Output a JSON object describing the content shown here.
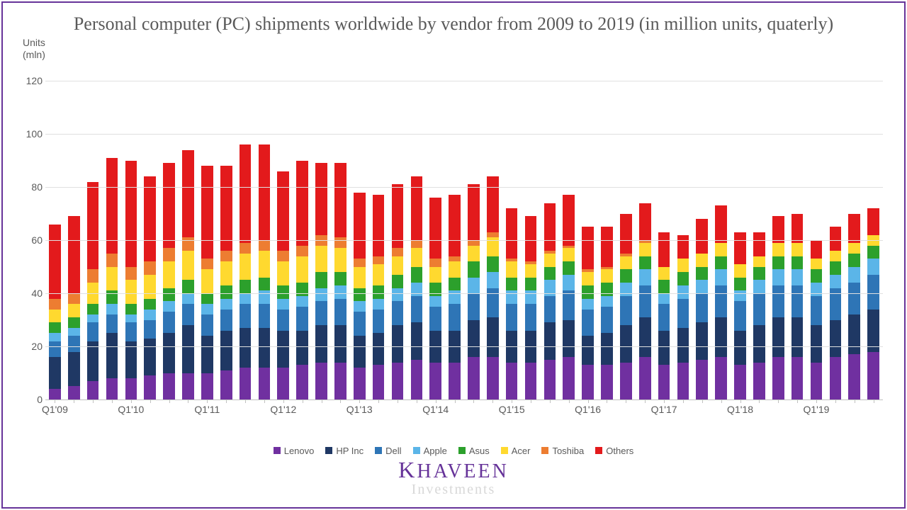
{
  "title": "Personal computer (PC) shipments worldwide by vendor from 2009 to 2019 (in million units, quaterly)",
  "title_fontsize": 26,
  "title_color": "#5a5a5a",
  "yaxis": {
    "label_line1": "Units",
    "label_line2": "(mln)",
    "label_fontsize": 14
  },
  "axis_fontsize": 14,
  "xaxis_major_labels": [
    "Q1'09",
    "Q1'10",
    "Q1'11",
    "Q1'12",
    "Q1'13",
    "Q1'14",
    "Q1'15",
    "Q1'16",
    "Q1'17",
    "Q1'18",
    "Q1'19"
  ],
  "yticks": [
    0,
    20,
    40,
    60,
    80,
    100,
    120
  ],
  "ylim": [
    0,
    120
  ],
  "grid_color": "#e0e0e0",
  "background_color": "#ffffff",
  "border_color": "#663399",
  "legend_fontsize": 13,
  "series": [
    {
      "name": "Lenovo",
      "color": "#7030a0"
    },
    {
      "name": "HP Inc",
      "color": "#1f3864"
    },
    {
      "name": "Dell",
      "color": "#2e75b6"
    },
    {
      "name": "Apple",
      "color": "#5bb5e8"
    },
    {
      "name": "Asus",
      "color": "#2ca02c"
    },
    {
      "name": "Acer",
      "color": "#ffd92f"
    },
    {
      "name": "Toshiba",
      "color": "#ed7d31"
    },
    {
      "name": "Others",
      "color": "#e31a1c"
    }
  ],
  "bar_width_ratio": 0.62,
  "quarters_per_year": 4,
  "data": [
    [
      4,
      12,
      6,
      3,
      4,
      5,
      4,
      28
    ],
    [
      5,
      13,
      6,
      3,
      4,
      5,
      4,
      29
    ],
    [
      7,
      15,
      7,
      3,
      4,
      8,
      5,
      33
    ],
    [
      8,
      17,
      7,
      4,
      5,
      9,
      5,
      36
    ],
    [
      8,
      14,
      7,
      3,
      4,
      9,
      5,
      40
    ],
    [
      9,
      14,
      7,
      4,
      4,
      9,
      5,
      32
    ],
    [
      10,
      15,
      8,
      4,
      5,
      10,
      5,
      32
    ],
    [
      10,
      18,
      8,
      4,
      5,
      11,
      5,
      33
    ],
    [
      10,
      14,
      8,
      4,
      4,
      9,
      4,
      35
    ],
    [
      11,
      15,
      8,
      4,
      5,
      9,
      4,
      32
    ],
    [
      12,
      15,
      9,
      4,
      5,
      10,
      4,
      37
    ],
    [
      12,
      15,
      9,
      5,
      5,
      10,
      4,
      36
    ],
    [
      12,
      14,
      8,
      4,
      5,
      9,
      4,
      30
    ],
    [
      13,
      13,
      9,
      4,
      5,
      10,
      4,
      32
    ],
    [
      14,
      14,
      9,
      5,
      6,
      10,
      4,
      27
    ],
    [
      14,
      14,
      10,
      5,
      5,
      9,
      4,
      28
    ],
    [
      12,
      12,
      9,
      4,
      5,
      8,
      3,
      25
    ],
    [
      13,
      12,
      9,
      4,
      5,
      8,
      3,
      23
    ],
    [
      14,
      14,
      9,
      5,
      5,
      7,
      3,
      24
    ],
    [
      15,
      14,
      10,
      5,
      6,
      7,
      3,
      24
    ],
    [
      14,
      12,
      9,
      4,
      5,
      6,
      3,
      23
    ],
    [
      14,
      12,
      10,
      5,
      5,
      6,
      2,
      23
    ],
    [
      16,
      14,
      10,
      6,
      6,
      6,
      2,
      21
    ],
    [
      16,
      15,
      11,
      6,
      6,
      7,
      2,
      21
    ],
    [
      14,
      12,
      10,
      5,
      5,
      6,
      1,
      19
    ],
    [
      14,
      12,
      10,
      5,
      5,
      5,
      1,
      17
    ],
    [
      15,
      14,
      10,
      6,
      5,
      5,
      1,
      18
    ],
    [
      16,
      14,
      11,
      6,
      5,
      5,
      1,
      19
    ],
    [
      13,
      11,
      10,
      4,
      5,
      5,
      1,
      16
    ],
    [
      13,
      12,
      10,
      4,
      5,
      5,
      1,
      15
    ],
    [
      14,
      14,
      11,
      5,
      5,
      5,
      1,
      15
    ],
    [
      16,
      15,
      12,
      6,
      5,
      5,
      1,
      14
    ],
    [
      13,
      13,
      10,
      4,
      5,
      5,
      0,
      13
    ],
    [
      14,
      13,
      11,
      5,
      5,
      5,
      0,
      9
    ],
    [
      15,
      14,
      11,
      5,
      5,
      5,
      0,
      13
    ],
    [
      16,
      15,
      12,
      6,
      5,
      5,
      0,
      14
    ],
    [
      13,
      13,
      11,
      4,
      5,
      5,
      0,
      12
    ],
    [
      14,
      14,
      12,
      5,
      5,
      4,
      0,
      9
    ],
    [
      16,
      15,
      12,
      6,
      5,
      5,
      0,
      10
    ],
    [
      16,
      15,
      12,
      6,
      5,
      5,
      0,
      11
    ],
    [
      14,
      14,
      11,
      5,
      5,
      4,
      0,
      7
    ],
    [
      16,
      14,
      12,
      5,
      5,
      4,
      0,
      9
    ],
    [
      17,
      15,
      12,
      6,
      5,
      4,
      0,
      11
    ],
    [
      18,
      16,
      13,
      6,
      5,
      4,
      0,
      10
    ]
  ],
  "watermark": {
    "main": "KHAVEEN",
    "sub": "Investments",
    "main_fontsize": 28,
    "sub_fontsize": 20,
    "main_color": "#663399",
    "sub_color": "#d8d8d8"
  }
}
